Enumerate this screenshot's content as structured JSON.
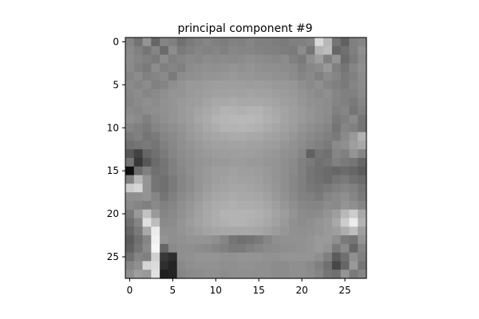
{
  "chart_data": {
    "type": "heatmap",
    "title": "principal component #9",
    "xlabel": "",
    "ylabel": "",
    "colormap": "gray",
    "grid": false,
    "xlim": [
      -0.5,
      27.5
    ],
    "ylim": [
      27.5,
      -0.5
    ],
    "xticks": [
      0,
      5,
      10,
      15,
      20,
      25
    ],
    "yticks": [
      0,
      5,
      10,
      15,
      20,
      25
    ],
    "value_range": [
      0,
      1
    ],
    "values": [
      [
        0.52,
        0.45,
        0.58,
        0.4,
        0.52,
        0.5,
        0.44,
        0.48,
        0.5,
        0.52,
        0.5,
        0.49,
        0.51,
        0.5,
        0.52,
        0.5,
        0.5,
        0.49,
        0.48,
        0.5,
        0.5,
        0.52,
        0.85,
        0.72,
        0.46,
        0.38,
        0.5,
        0.52
      ],
      [
        0.54,
        0.5,
        0.46,
        0.52,
        0.42,
        0.55,
        0.48,
        0.5,
        0.52,
        0.51,
        0.52,
        0.5,
        0.53,
        0.52,
        0.52,
        0.51,
        0.5,
        0.5,
        0.49,
        0.48,
        0.55,
        0.46,
        0.7,
        0.74,
        0.4,
        0.44,
        0.5,
        0.56
      ],
      [
        0.55,
        0.52,
        0.5,
        0.48,
        0.55,
        0.5,
        0.52,
        0.54,
        0.53,
        0.55,
        0.54,
        0.55,
        0.54,
        0.55,
        0.56,
        0.55,
        0.54,
        0.53,
        0.55,
        0.5,
        0.48,
        0.56,
        0.62,
        0.5,
        0.58,
        0.42,
        0.48,
        0.54
      ],
      [
        0.54,
        0.5,
        0.48,
        0.55,
        0.5,
        0.52,
        0.5,
        0.55,
        0.56,
        0.57,
        0.56,
        0.57,
        0.58,
        0.57,
        0.58,
        0.57,
        0.56,
        0.56,
        0.55,
        0.54,
        0.5,
        0.53,
        0.55,
        0.6,
        0.5,
        0.46,
        0.52,
        0.56
      ],
      [
        0.52,
        0.55,
        0.5,
        0.52,
        0.54,
        0.48,
        0.55,
        0.56,
        0.57,
        0.58,
        0.58,
        0.59,
        0.6,
        0.59,
        0.59,
        0.58,
        0.58,
        0.57,
        0.57,
        0.55,
        0.52,
        0.54,
        0.5,
        0.55,
        0.52,
        0.48,
        0.5,
        0.55
      ],
      [
        0.54,
        0.52,
        0.55,
        0.5,
        0.52,
        0.56,
        0.58,
        0.6,
        0.6,
        0.61,
        0.62,
        0.62,
        0.62,
        0.62,
        0.61,
        0.62,
        0.61,
        0.6,
        0.6,
        0.59,
        0.56,
        0.54,
        0.56,
        0.52,
        0.5,
        0.48,
        0.52,
        0.55
      ],
      [
        0.53,
        0.55,
        0.52,
        0.54,
        0.56,
        0.58,
        0.58,
        0.6,
        0.61,
        0.62,
        0.63,
        0.63,
        0.64,
        0.63,
        0.64,
        0.63,
        0.63,
        0.62,
        0.61,
        0.6,
        0.58,
        0.56,
        0.54,
        0.56,
        0.52,
        0.5,
        0.5,
        0.54
      ],
      [
        0.52,
        0.54,
        0.56,
        0.55,
        0.57,
        0.58,
        0.6,
        0.61,
        0.62,
        0.64,
        0.66,
        0.66,
        0.67,
        0.66,
        0.66,
        0.66,
        0.65,
        0.64,
        0.62,
        0.61,
        0.59,
        0.57,
        0.56,
        0.55,
        0.52,
        0.5,
        0.48,
        0.52
      ],
      [
        0.54,
        0.53,
        0.55,
        0.56,
        0.57,
        0.58,
        0.6,
        0.62,
        0.64,
        0.66,
        0.68,
        0.7,
        0.7,
        0.69,
        0.7,
        0.7,
        0.68,
        0.66,
        0.64,
        0.62,
        0.6,
        0.58,
        0.56,
        0.55,
        0.5,
        0.52,
        0.46,
        0.5
      ],
      [
        0.56,
        0.54,
        0.5,
        0.54,
        0.56,
        0.58,
        0.6,
        0.62,
        0.65,
        0.67,
        0.7,
        0.71,
        0.72,
        0.72,
        0.72,
        0.71,
        0.69,
        0.67,
        0.64,
        0.62,
        0.6,
        0.58,
        0.56,
        0.54,
        0.48,
        0.5,
        0.54,
        0.46
      ],
      [
        0.52,
        0.5,
        0.48,
        0.52,
        0.54,
        0.56,
        0.58,
        0.61,
        0.63,
        0.66,
        0.68,
        0.7,
        0.7,
        0.71,
        0.7,
        0.69,
        0.67,
        0.65,
        0.63,
        0.61,
        0.58,
        0.56,
        0.54,
        0.52,
        0.46,
        0.52,
        0.5,
        0.46
      ],
      [
        0.48,
        0.5,
        0.46,
        0.48,
        0.52,
        0.54,
        0.57,
        0.6,
        0.62,
        0.64,
        0.65,
        0.66,
        0.67,
        0.67,
        0.66,
        0.66,
        0.64,
        0.63,
        0.61,
        0.59,
        0.56,
        0.54,
        0.52,
        0.5,
        0.48,
        0.54,
        0.6,
        0.7
      ],
      [
        0.44,
        0.46,
        0.48,
        0.46,
        0.5,
        0.53,
        0.56,
        0.58,
        0.6,
        0.62,
        0.63,
        0.63,
        0.64,
        0.64,
        0.63,
        0.63,
        0.62,
        0.61,
        0.59,
        0.57,
        0.55,
        0.52,
        0.5,
        0.48,
        0.54,
        0.56,
        0.62,
        0.66
      ],
      [
        0.34,
        0.26,
        0.4,
        0.44,
        0.48,
        0.52,
        0.55,
        0.57,
        0.59,
        0.6,
        0.61,
        0.62,
        0.62,
        0.62,
        0.62,
        0.61,
        0.6,
        0.59,
        0.57,
        0.56,
        0.52,
        0.38,
        0.46,
        0.44,
        0.52,
        0.5,
        0.58,
        0.52
      ],
      [
        0.46,
        0.22,
        0.34,
        0.42,
        0.46,
        0.5,
        0.54,
        0.56,
        0.58,
        0.59,
        0.6,
        0.6,
        0.61,
        0.61,
        0.6,
        0.6,
        0.59,
        0.58,
        0.56,
        0.54,
        0.5,
        0.48,
        0.44,
        0.46,
        0.5,
        0.48,
        0.46,
        0.4
      ],
      [
        0.06,
        0.42,
        0.5,
        0.44,
        0.46,
        0.5,
        0.53,
        0.56,
        0.58,
        0.6,
        0.62,
        0.62,
        0.63,
        0.62,
        0.62,
        0.61,
        0.6,
        0.58,
        0.56,
        0.54,
        0.5,
        0.46,
        0.44,
        0.42,
        0.4,
        0.42,
        0.4,
        0.36
      ],
      [
        0.5,
        0.72,
        0.58,
        0.46,
        0.44,
        0.48,
        0.52,
        0.55,
        0.58,
        0.6,
        0.62,
        0.63,
        0.64,
        0.63,
        0.63,
        0.62,
        0.6,
        0.58,
        0.56,
        0.53,
        0.5,
        0.46,
        0.44,
        0.42,
        0.46,
        0.48,
        0.44,
        0.42
      ],
      [
        0.8,
        0.84,
        0.58,
        0.46,
        0.44,
        0.48,
        0.52,
        0.55,
        0.58,
        0.61,
        0.63,
        0.64,
        0.65,
        0.65,
        0.64,
        0.63,
        0.61,
        0.59,
        0.56,
        0.53,
        0.5,
        0.47,
        0.46,
        0.48,
        0.5,
        0.52,
        0.5,
        0.46
      ],
      [
        0.56,
        0.56,
        0.58,
        0.52,
        0.46,
        0.5,
        0.54,
        0.57,
        0.6,
        0.63,
        0.65,
        0.66,
        0.67,
        0.66,
        0.66,
        0.65,
        0.63,
        0.6,
        0.57,
        0.54,
        0.51,
        0.5,
        0.48,
        0.52,
        0.54,
        0.56,
        0.52,
        0.48
      ],
      [
        0.54,
        0.52,
        0.5,
        0.54,
        0.5,
        0.52,
        0.56,
        0.59,
        0.62,
        0.65,
        0.67,
        0.68,
        0.69,
        0.68,
        0.68,
        0.67,
        0.65,
        0.62,
        0.59,
        0.56,
        0.53,
        0.52,
        0.52,
        0.55,
        0.54,
        0.58,
        0.56,
        0.52
      ],
      [
        0.48,
        0.6,
        0.76,
        0.6,
        0.52,
        0.54,
        0.57,
        0.6,
        0.63,
        0.66,
        0.68,
        0.7,
        0.7,
        0.7,
        0.7,
        0.69,
        0.67,
        0.64,
        0.61,
        0.58,
        0.55,
        0.54,
        0.55,
        0.58,
        0.62,
        0.72,
        0.8,
        0.66
      ],
      [
        0.44,
        0.52,
        0.88,
        0.74,
        0.54,
        0.55,
        0.58,
        0.61,
        0.64,
        0.66,
        0.68,
        0.69,
        0.7,
        0.7,
        0.69,
        0.68,
        0.66,
        0.63,
        0.6,
        0.57,
        0.55,
        0.56,
        0.58,
        0.6,
        0.66,
        0.8,
        0.92,
        0.7
      ],
      [
        0.4,
        0.48,
        0.66,
        0.92,
        0.56,
        0.56,
        0.58,
        0.6,
        0.62,
        0.64,
        0.65,
        0.66,
        0.66,
        0.66,
        0.66,
        0.65,
        0.63,
        0.61,
        0.59,
        0.57,
        0.56,
        0.57,
        0.58,
        0.6,
        0.62,
        0.68,
        0.74,
        0.62
      ],
      [
        0.36,
        0.44,
        0.52,
        0.94,
        0.58,
        0.56,
        0.57,
        0.58,
        0.58,
        0.58,
        0.56,
        0.52,
        0.46,
        0.44,
        0.45,
        0.48,
        0.52,
        0.56,
        0.57,
        0.57,
        0.57,
        0.58,
        0.6,
        0.6,
        0.56,
        0.48,
        0.46,
        0.58
      ],
      [
        0.38,
        0.46,
        0.54,
        0.96,
        0.4,
        0.54,
        0.56,
        0.56,
        0.55,
        0.54,
        0.52,
        0.5,
        0.48,
        0.48,
        0.5,
        0.52,
        0.54,
        0.55,
        0.56,
        0.56,
        0.57,
        0.58,
        0.6,
        0.58,
        0.48,
        0.54,
        0.4,
        0.52
      ],
      [
        0.44,
        0.52,
        0.5,
        0.82,
        0.22,
        0.18,
        0.56,
        0.57,
        0.58,
        0.58,
        0.58,
        0.57,
        0.57,
        0.58,
        0.58,
        0.58,
        0.57,
        0.57,
        0.58,
        0.58,
        0.58,
        0.58,
        0.56,
        0.5,
        0.36,
        0.44,
        0.56,
        0.5
      ],
      [
        0.52,
        0.56,
        0.84,
        0.86,
        0.18,
        0.14,
        0.54,
        0.56,
        0.57,
        0.57,
        0.57,
        0.56,
        0.56,
        0.57,
        0.57,
        0.56,
        0.56,
        0.55,
        0.55,
        0.56,
        0.56,
        0.54,
        0.5,
        0.44,
        0.28,
        0.4,
        0.6,
        0.46
      ],
      [
        0.56,
        0.62,
        0.6,
        0.88,
        0.12,
        0.14,
        0.52,
        0.54,
        0.55,
        0.56,
        0.56,
        0.55,
        0.56,
        0.56,
        0.56,
        0.56,
        0.56,
        0.55,
        0.55,
        0.56,
        0.56,
        0.55,
        0.52,
        0.46,
        0.44,
        0.58,
        0.48,
        0.52
      ]
    ]
  }
}
